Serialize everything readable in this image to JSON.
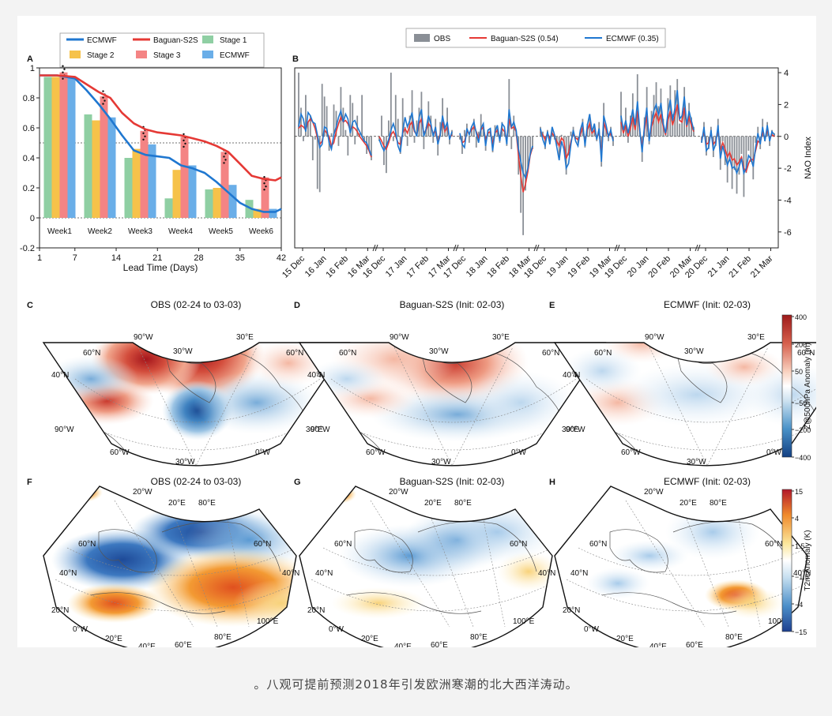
{
  "caption": "。八观可提前预测2018年引发欧洲寒潮的北大西洋涛动。",
  "colors": {
    "ecmwf": "#1f77d0",
    "baguan": "#e53935",
    "stage1": "#8fcfa3",
    "stage2": "#f6c24a",
    "stage3": "#f48484",
    "stage4": "#6aaee8",
    "obs": "#8a8f96"
  },
  "panels": {
    "A": {
      "label": "A",
      "xlabel": "Lead Time (Days)"
    },
    "B": {
      "label": "B",
      "ylabel": "NAO Index"
    },
    "C": {
      "label": "C",
      "title": "OBS (02-24 to 03-03)"
    },
    "D": {
      "label": "D",
      "title": "Baguan-S2S (Init: 02-03)"
    },
    "E": {
      "label": "E",
      "title": "ECMWF (Init: 02-03)"
    },
    "F": {
      "label": "F",
      "title": "OBS (02-24 to 03-03)"
    },
    "G": {
      "label": "G",
      "title": "Baguan-S2S (Init: 02-03)"
    },
    "H": {
      "label": "H",
      "title": "ECMWF (Init: 02-03)"
    }
  },
  "legendA": [
    {
      "label": "ECMWF",
      "kind": "line",
      "color": "#1f77d0"
    },
    {
      "label": "Baguan-S2S",
      "kind": "line",
      "color": "#e53935"
    },
    {
      "label": "Stage 1",
      "kind": "box",
      "color": "#8fcfa3"
    },
    {
      "label": "Stage 2",
      "kind": "box",
      "color": "#f6c24a"
    },
    {
      "label": "Stage 3",
      "kind": "box",
      "color": "#f48484"
    },
    {
      "label": "ECMWF",
      "kind": "box",
      "color": "#6aaee8"
    }
  ],
  "legendB": [
    {
      "label": "OBS",
      "kind": "box",
      "color": "#8a8f96"
    },
    {
      "label": "Baguan-S2S (0.54)",
      "kind": "line",
      "color": "#e53935"
    },
    {
      "label": "ECMWF (0.35)",
      "kind": "line",
      "color": "#1f77d0"
    }
  ],
  "mapLabelsZ": {
    "top": [
      "90°W",
      "30°E"
    ],
    "inner": "30°W",
    "left": [
      "60°N",
      "40°N",
      "90°W"
    ],
    "right": [
      "60°N",
      "40°N",
      "30°E"
    ],
    "bottom": [
      "60°W",
      "30°W",
      "0°W"
    ]
  },
  "mapLabelsT": {
    "top": [
      "20°W",
      "20°E",
      "80°E"
    ],
    "left": [
      "60°N",
      "40°N",
      "20°N",
      "0°W"
    ],
    "right": [
      "60°N",
      "40°N",
      "100°E"
    ],
    "bottom": [
      "20°E",
      "40°E",
      "60°E",
      "80°E"
    ]
  },
  "colorbarZ": {
    "label": "Z@500hPa Anomaly (m)",
    "ticks": [
      "400",
      "200",
      "50",
      "−50",
      "−200",
      "−400"
    ]
  },
  "colorbarT": {
    "label": "T2m Anomaly (K)",
    "ticks": [
      "15",
      "4",
      "1.5",
      "−1.5",
      "−4",
      "−15"
    ]
  },
  "chart_data": [
    {
      "type": "bar",
      "panel": "A",
      "xlabel": "Lead Time (Days)",
      "ylabel": "",
      "xlim": [
        1,
        42
      ],
      "ylim": [
        -0.2,
        1.0
      ],
      "xticks": [
        1,
        7,
        14,
        21,
        28,
        35,
        42
      ],
      "yticks": [
        -0.2,
        0,
        0.2,
        0.4,
        0.6,
        0.8,
        1
      ],
      "reference_line": 0.5,
      "categories": [
        "Week1",
        "Week2",
        "Week3",
        "Week4",
        "Week5",
        "Week6"
      ],
      "series": [
        {
          "name": "Stage 1",
          "values": [
            0.94,
            0.69,
            0.4,
            0.13,
            0.19,
            0.12
          ]
        },
        {
          "name": "Stage 2",
          "values": [
            0.94,
            0.65,
            0.46,
            0.32,
            0.2,
            0.06
          ]
        },
        {
          "name": "Stage 3",
          "values": [
            0.97,
            0.81,
            0.58,
            0.54,
            0.44,
            0.27
          ]
        },
        {
          "name": "ECMWF",
          "values": [
            0.94,
            0.67,
            0.49,
            0.35,
            0.22,
            0.06
          ]
        }
      ],
      "lines": [
        {
          "name": "ECMWF",
          "x": [
            1,
            4,
            7,
            9,
            11,
            13,
            15,
            17,
            19,
            21,
            23,
            25,
            27,
            29,
            31,
            33,
            35,
            37,
            39,
            41,
            42
          ],
          "y": [
            0.95,
            0.95,
            0.93,
            0.85,
            0.76,
            0.66,
            0.55,
            0.45,
            0.42,
            0.41,
            0.4,
            0.35,
            0.33,
            0.3,
            0.24,
            0.17,
            0.1,
            0.06,
            0.04,
            0.04,
            0.06
          ]
        },
        {
          "name": "Baguan-S2S",
          "x": [
            1,
            4,
            7,
            9,
            11,
            13,
            15,
            17,
            19,
            21,
            23,
            25,
            27,
            29,
            31,
            33,
            35,
            37,
            39,
            41,
            42
          ],
          "y": [
            0.95,
            0.95,
            0.94,
            0.89,
            0.84,
            0.8,
            0.7,
            0.63,
            0.59,
            0.57,
            0.56,
            0.55,
            0.53,
            0.51,
            0.48,
            0.44,
            0.36,
            0.28,
            0.26,
            0.25,
            0.27
          ]
        }
      ]
    },
    {
      "type": "line",
      "panel": "B",
      "ylabel": "NAO Index",
      "ylim": [
        -7,
        4.3
      ],
      "yticks": [
        -6,
        -4,
        -2,
        0,
        2,
        4
      ],
      "xtick_labels": [
        "15 Dec",
        "16 Jan",
        "16 Feb",
        "16 Mar",
        "16 Dec",
        "17 Jan",
        "17 Feb",
        "17 Mar",
        "17 Dec",
        "18 Jan",
        "18 Feb",
        "18 Mar",
        "18 Dec",
        "19 Jan",
        "19 Feb",
        "19 Mar",
        "19 Dec",
        "20 Jan",
        "20 Feb",
        "20 Mar",
        "20 Dec",
        "21 Jan",
        "21 Feb",
        "21 Mar"
      ],
      "segments": [
        {
          "season": "2015-16",
          "obs": [
            4.0,
            1.8,
            -0.3,
            2.6,
            0.9,
            1.3,
            -1.5,
            -0.2,
            -3.3,
            -3.5,
            3.3,
            2.5,
            1.9,
            -0.9,
            0.2,
            2.0,
            1.6,
            -0.6,
            3.1,
            1.8,
            0.4,
            -1.2,
            2.6,
            2.1,
            -0.5,
            1.3,
            0.2,
            2.6,
            -0.3,
            -1.1,
            -0.8,
            -1.5
          ],
          "baguan": [
            0.5,
            0.7,
            0.6,
            0.4,
            0.9,
            1.1,
            0.9,
            0.5,
            -0.1,
            -0.5,
            -0.3,
            0.4,
            0.2,
            0.0,
            -0.6,
            -0.4,
            0.3,
            0.8,
            1.2,
            0.9,
            1.0,
            0.8,
            0.4,
            0.6,
            0.5,
            0.3,
            0.0,
            -0.2,
            -0.4,
            -0.6,
            -0.9,
            -1.3
          ],
          "ecmwf": [
            0.6,
            1.4,
            1.1,
            0.3,
            1.5,
            1.3,
            0.9,
            0.8,
            0.1,
            -0.7,
            -0.5,
            0.6,
            0.5,
            -0.4,
            -0.8,
            0.1,
            0.6,
            1.2,
            1.6,
            0.9,
            1.4,
            1.1,
            0.2,
            0.9,
            1.0,
            0.6,
            0.3,
            0.0,
            -0.3,
            -0.4,
            -0.8,
            -1.2
          ]
        },
        {
          "season": "2016-17",
          "obs": [
            -0.3,
            1.3,
            -1.8,
            -2.3,
            1.0,
            4.0,
            -0.3,
            2.6,
            1.1,
            -1.1,
            2.4,
            0.6,
            -0.6,
            1.3,
            2.9,
            -0.4,
            1.0,
            1.8,
            2.8,
            -0.8,
            0.6,
            2.2,
            1.3,
            -0.4,
            1.1,
            -1.2,
            0.9,
            2.4,
            0.3,
            1.8,
            -0.5,
            0.4
          ],
          "baguan": [
            0.0,
            -0.3,
            -0.6,
            -0.8,
            -0.4,
            0.1,
            0.3,
            0.0,
            -0.4,
            -0.5,
            0.2,
            0.5,
            0.2,
            0.7,
            0.9,
            0.3,
            0.1,
            0.8,
            1.1,
            0.2,
            0.4,
            0.8,
            0.6,
            0.2,
            0.3,
            -0.4,
            0.2,
            0.9,
            0.3,
            0.6,
            -0.1,
            0.1
          ],
          "ecmwf": [
            -0.2,
            -0.6,
            -0.9,
            -0.6,
            -0.2,
            0.4,
            0.8,
            0.3,
            -0.6,
            -1.0,
            0.3,
            1.2,
            0.6,
            1.0,
            1.5,
            0.4,
            0.0,
            1.2,
            1.7,
            0.0,
            0.5,
            1.3,
            0.8,
            0.0,
            0.6,
            -0.5,
            0.1,
            1.3,
            0.5,
            0.9,
            -0.2,
            0.3
          ]
        },
        {
          "season": "2017-18",
          "obs": [
            -0.2,
            -1.1,
            0.4,
            0.8,
            -0.4,
            0.6,
            1.1,
            -0.7,
            0.3,
            1.4,
            0.6,
            -0.9,
            0.4,
            0.5,
            -1.0,
            0.7,
            0.5,
            -0.4,
            0.9,
            0.2,
            -0.6,
            3.6,
            -0.8,
            1.3,
            0.4,
            -2.4,
            -4.8,
            -6.2,
            -3.4,
            -2.1,
            -1.2,
            -0.8
          ],
          "baguan": [
            0.1,
            -0.4,
            -0.3,
            0.3,
            0.2,
            0.4,
            0.6,
            0.3,
            -0.1,
            0.4,
            0.6,
            -0.2,
            0.2,
            0.3,
            -0.5,
            0.2,
            0.4,
            -0.1,
            0.5,
            0.3,
            -0.2,
            1.1,
            0.5,
            0.6,
            0.3,
            -1.2,
            -2.5,
            -3.5,
            -3.0,
            -2.2,
            -1.2,
            -0.7
          ],
          "ecmwf": [
            0.2,
            -0.5,
            -0.7,
            0.5,
            0.1,
            0.6,
            0.9,
            0.2,
            -0.4,
            0.5,
            0.8,
            -0.6,
            0.4,
            0.5,
            -0.9,
            0.3,
            0.7,
            -0.3,
            0.8,
            0.6,
            -0.5,
            1.7,
            0.6,
            0.9,
            0.4,
            -0.8,
            -1.6,
            -2.3,
            -2.6,
            -2.0,
            -1.1,
            -0.6
          ]
        },
        {
          "season": "2018-19",
          "obs": [
            0.6,
            0.3,
            -0.8,
            0.4,
            -0.3,
            0.5,
            -0.2,
            -0.6,
            -1.3,
            0.1,
            -0.4,
            -2.4,
            -1.2,
            0.3,
            0.6,
            -0.1,
            -0.4,
            0.3,
            1.1,
            -0.7,
            0.8,
            1.4,
            0.3,
            0.7,
            -0.3,
            0.9,
            -1.9,
            2.1,
            0.5,
            -0.3,
            0.6,
            -0.6
          ],
          "baguan": [
            0.3,
            0.1,
            -0.2,
            0.2,
            -0.1,
            0.2,
            0.0,
            -0.3,
            -0.6,
            -0.1,
            -0.3,
            -1.4,
            -1.0,
            -0.3,
            0.2,
            -0.1,
            -0.2,
            0.1,
            0.6,
            -0.3,
            0.4,
            0.8,
            0.2,
            0.4,
            -0.1,
            0.3,
            -1.1,
            0.9,
            0.4,
            0.0,
            0.2,
            -0.2
          ],
          "ecmwf": [
            0.5,
            -0.2,
            -0.6,
            0.3,
            -0.5,
            0.6,
            0.1,
            -0.7,
            -1.5,
            -0.3,
            -0.8,
            -2.0,
            -1.7,
            -0.5,
            0.4,
            -0.3,
            -0.6,
            0.4,
            0.9,
            -0.6,
            0.7,
            1.4,
            0.3,
            0.8,
            -0.2,
            0.5,
            -1.6,
            1.3,
            0.7,
            0.0,
            0.4,
            -0.3
          ]
        },
        {
          "season": "2019-20",
          "obs": [
            2.8,
            0.2,
            1.8,
            -0.4,
            1.3,
            2.7,
            1.1,
            3.9,
            0.5,
            -1.6,
            1.2,
            3.1,
            -0.5,
            1.6,
            2.6,
            3.4,
            1.9,
            3.0,
            1.1,
            0.3,
            2.4,
            3.2,
            1.4,
            2.9,
            3.6,
            0.8,
            1.3,
            3.1,
            0.6,
            2.1,
            1.2,
            0.6
          ],
          "baguan": [
            0.9,
            0.2,
            0.7,
            0.0,
            0.5,
            1.2,
            0.4,
            1.6,
            0.3,
            -0.6,
            0.4,
            1.3,
            -0.2,
            0.6,
            1.1,
            1.5,
            0.9,
            1.4,
            0.6,
            0.1,
            1.0,
            1.6,
            0.7,
            1.3,
            2.0,
            1.0,
            0.9,
            1.8,
            0.6,
            1.2,
            0.7,
            0.3
          ],
          "ecmwf": [
            1.3,
            0.4,
            1.0,
            0.2,
            0.9,
            1.7,
            0.7,
            2.2,
            0.4,
            -1.0,
            0.7,
            1.8,
            -0.3,
            0.9,
            1.6,
            2.0,
            1.3,
            2.1,
            0.8,
            0.2,
            1.5,
            2.3,
            1.0,
            1.8,
            2.9,
            1.1,
            1.3,
            2.5,
            0.7,
            1.6,
            1.0,
            0.4
          ]
        },
        {
          "season": "2020-21",
          "obs": [
            -0.4,
            0.9,
            -1.2,
            -0.8,
            0.6,
            -1.3,
            -0.6,
            1.1,
            -2.1,
            -0.3,
            -1.8,
            -2.9,
            -1.4,
            -3.3,
            -2.1,
            -3.6,
            -2.4,
            -1.1,
            -3.8,
            -2.3,
            -0.9,
            -1.6,
            -2.7,
            -0.4,
            0.6,
            -0.8,
            1.1,
            -0.3,
            0.9,
            -0.6,
            0.4,
            0.2
          ],
          "baguan": [
            -0.2,
            0.3,
            -0.5,
            -0.4,
            0.2,
            -0.5,
            -0.3,
            0.4,
            -0.9,
            -0.4,
            -0.8,
            -1.3,
            -1.0,
            -1.5,
            -1.4,
            -1.8,
            -1.6,
            -1.3,
            -2.0,
            -2.2,
            -1.7,
            -1.4,
            -1.5,
            -0.9,
            -0.3,
            -0.4,
            0.3,
            -0.2,
            0.4,
            -0.1,
            0.1,
            0.0
          ],
          "ecmwf": [
            -0.4,
            0.6,
            -0.9,
            -0.7,
            0.4,
            -0.9,
            -0.5,
            0.7,
            -1.4,
            -0.6,
            -1.2,
            -1.8,
            -1.4,
            -2.0,
            -1.9,
            -2.3,
            -1.9,
            -1.4,
            -2.3,
            -2.0,
            -1.2,
            -1.4,
            -1.9,
            -0.7,
            0.2,
            -0.5,
            0.6,
            -0.3,
            0.7,
            -0.3,
            0.3,
            0.1
          ]
        }
      ]
    }
  ]
}
